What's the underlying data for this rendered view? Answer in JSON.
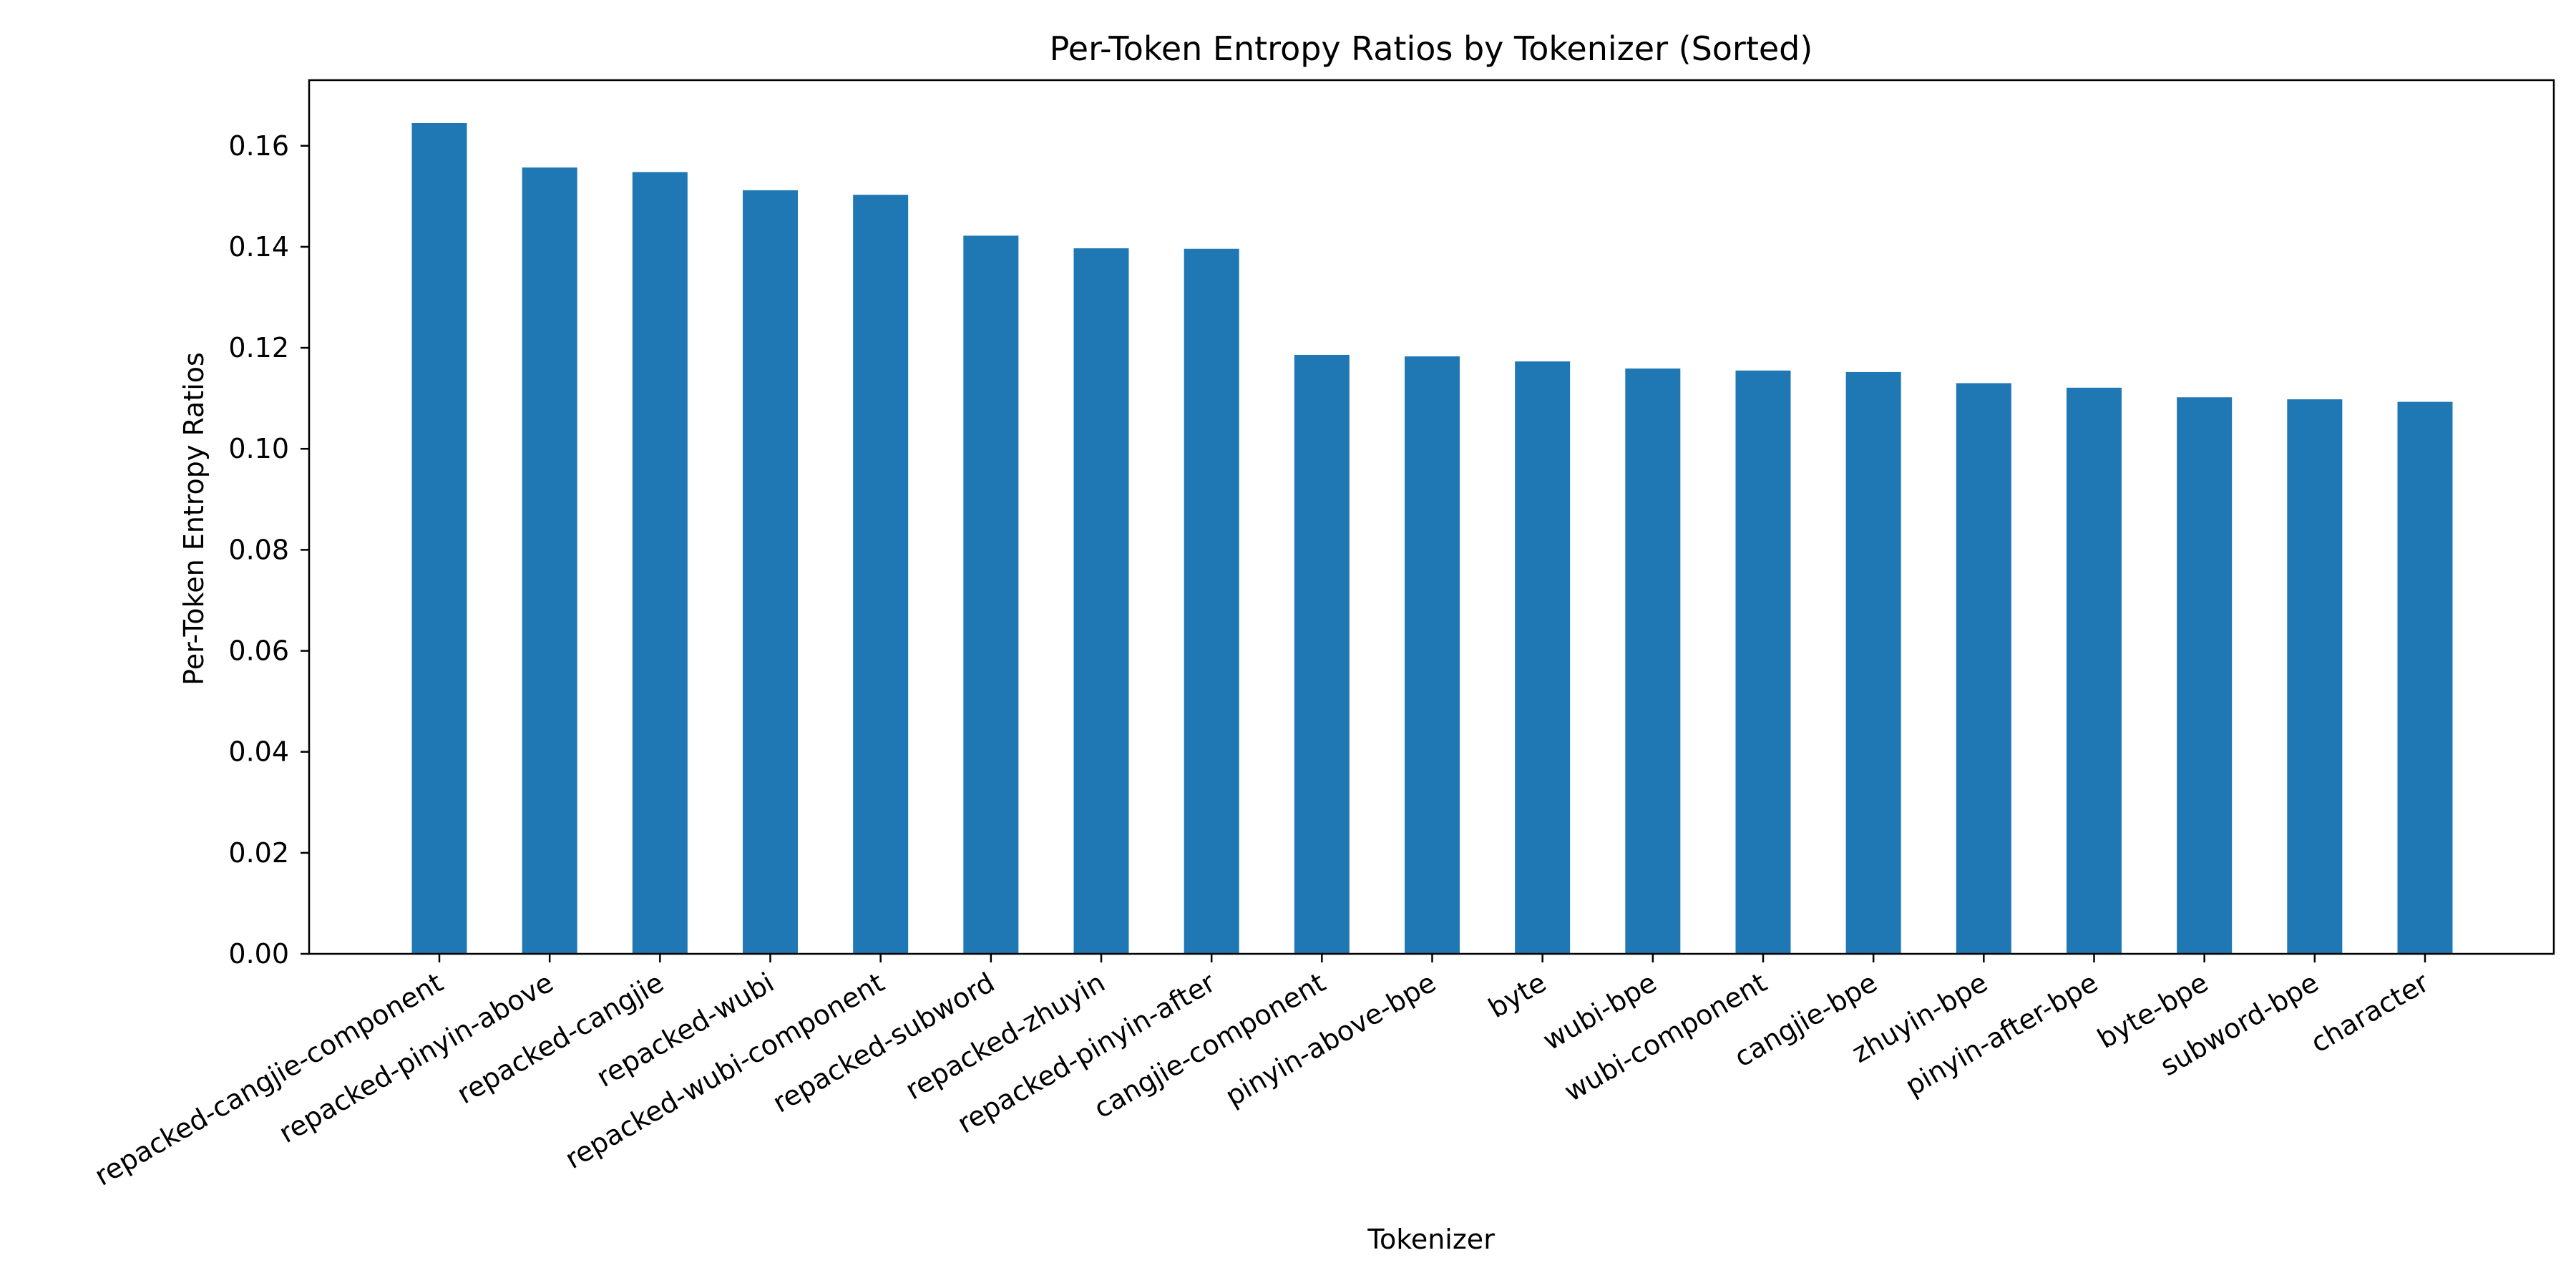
{
  "chart_data": {
    "type": "bar",
    "title": "Per-Token Entropy Ratios by Tokenizer (Sorted)",
    "xlabel": "Tokenizer",
    "ylabel": "Per-Token Entropy Ratios",
    "ylim": [
      0,
      0.173
    ],
    "yticks": [
      "0.00",
      "0.02",
      "0.04",
      "0.06",
      "0.08",
      "0.10",
      "0.12",
      "0.14",
      "0.16"
    ],
    "grid": false,
    "bar_color": "#1f77b4",
    "categories": [
      "repacked-cangjie-component",
      "repacked-pinyin-above",
      "repacked-cangjie",
      "repacked-wubi",
      "repacked-wubi-component",
      "repacked-subword",
      "repacked-zhuyin",
      "repacked-pinyin-after",
      "cangjie-component",
      "pinyin-above-bpe",
      "byte",
      "wubi-bpe",
      "wubi-component",
      "cangjie-bpe",
      "zhuyin-bpe",
      "pinyin-after-bpe",
      "byte-bpe",
      "subword-bpe",
      "character"
    ],
    "values": [
      0.1645,
      0.1557,
      0.1548,
      0.1512,
      0.1503,
      0.1422,
      0.1397,
      0.1396,
      0.1186,
      0.1183,
      0.1173,
      0.1159,
      0.1155,
      0.1152,
      0.113,
      0.1121,
      0.1102,
      0.1098,
      0.1093
    ]
  }
}
